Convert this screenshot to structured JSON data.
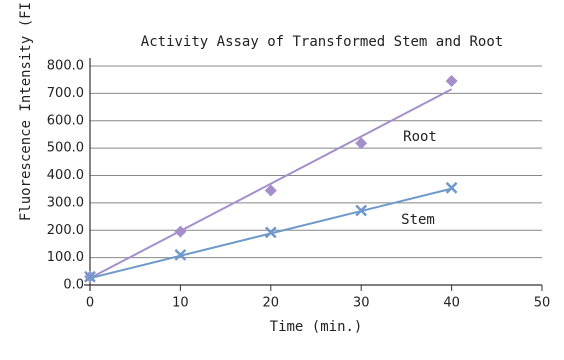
{
  "chart_data": {
    "type": "scatter",
    "title": "Activity Assay of Transformed Stem and Root",
    "x_label": "Time (min.)",
    "y_label": "Fluorescence Intensity (FI",
    "x": [
      0,
      10,
      20,
      30,
      40
    ],
    "series": [
      {
        "name": "Root",
        "color": "#a58fcb",
        "marker": "diamond",
        "values": [
          30,
          195,
          345,
          518,
          745
        ],
        "trend": [
          25,
          715
        ]
      },
      {
        "name": "Stem",
        "color": "#6e99c9",
        "marker": "x",
        "values": [
          30,
          110,
          192,
          272,
          355
        ],
        "trend": [
          25,
          352
        ]
      }
    ],
    "trend_x": [
      0,
      40
    ],
    "xlim": [
      0,
      50
    ],
    "xticks": [
      0,
      10,
      20,
      30,
      40,
      50
    ],
    "ylim": [
      0,
      800
    ],
    "yticks": [
      {
        "value": 0,
        "label": "0.0"
      },
      {
        "value": 100,
        "label": "100.0"
      },
      {
        "value": 200,
        "label": "200.0"
      },
      {
        "value": 300,
        "label": "300.0"
      },
      {
        "value": 400,
        "label": "400.0"
      },
      {
        "value": 500,
        "label": "500.0"
      },
      {
        "value": 600,
        "label": "600.0"
      },
      {
        "value": 700,
        "label": "700.0"
      },
      {
        "value": 800,
        "label": "800.0"
      }
    ],
    "grid": true
  }
}
